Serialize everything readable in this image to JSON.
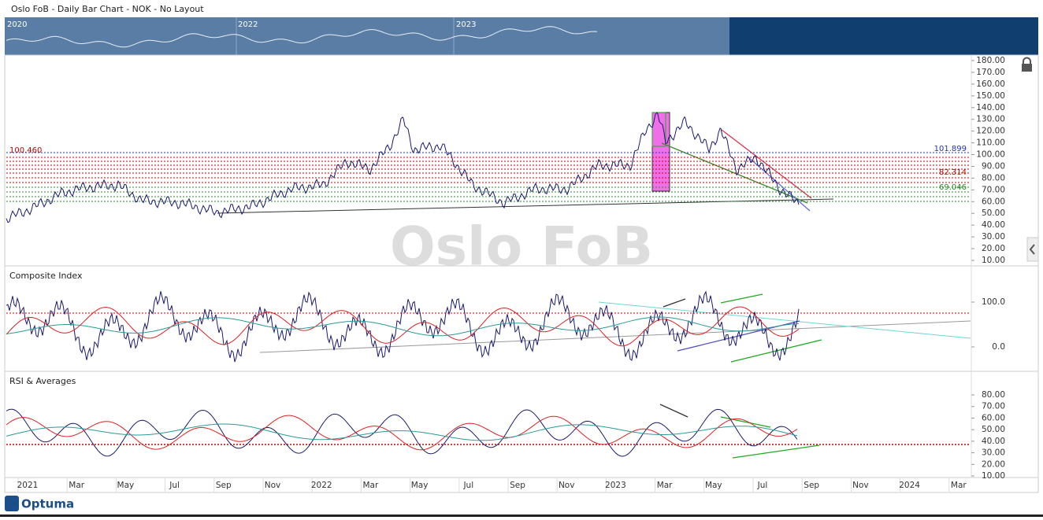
{
  "header": {
    "title": "Oslo FoB - Daily Bar Chart - NOK - No Layout"
  },
  "overview": {
    "years": [
      "2020",
      "2022",
      "2023"
    ]
  },
  "main": {
    "watermark": "Oslo FoB",
    "yticks": [
      {
        "value": 180,
        "label": "180.00"
      },
      {
        "value": 170,
        "label": "170.00"
      },
      {
        "value": 160,
        "label": "160.00"
      },
      {
        "value": 150,
        "label": "150.00"
      },
      {
        "value": 140,
        "label": "140.00"
      },
      {
        "value": 130,
        "label": "130.00"
      },
      {
        "value": 120,
        "label": "120.00"
      },
      {
        "value": 110,
        "label": "110.00"
      },
      {
        "value": 100,
        "label": "100.00"
      },
      {
        "value": 90,
        "label": "90.00"
      },
      {
        "value": 80,
        "label": "80.00"
      },
      {
        "value": 70,
        "label": "70.00"
      },
      {
        "value": 60,
        "label": "60.00"
      },
      {
        "value": 50,
        "label": "50.00"
      },
      {
        "value": 40,
        "label": "40.00"
      },
      {
        "value": 30,
        "label": "30.00"
      },
      {
        "value": 20,
        "label": "20.00"
      },
      {
        "value": 10,
        "label": "10.00"
      }
    ],
    "levels": {
      "left": "100.460",
      "right_top": "101.899",
      "right_mid": "82.314",
      "right_low": "69.046"
    }
  },
  "composite": {
    "title": "Composite Index",
    "yticks": [
      {
        "value": 100,
        "label": "100.0"
      },
      {
        "value": 0,
        "label": "0.0"
      }
    ]
  },
  "rsi": {
    "title": "RSI & Averages",
    "yticks": [
      {
        "value": 80,
        "label": "80.00"
      },
      {
        "value": 70,
        "label": "70.00"
      },
      {
        "value": 60,
        "label": "60.00"
      },
      {
        "value": 50,
        "label": "50.00"
      },
      {
        "value": 40,
        "label": "40.00"
      },
      {
        "value": 30,
        "label": "30.00"
      },
      {
        "value": 20,
        "label": "20.00"
      },
      {
        "value": 10,
        "label": "10.00"
      }
    ]
  },
  "xaxis": {
    "labels": [
      "2021",
      "Mar",
      "May",
      "Jul",
      "Sep",
      "Nov",
      "2022",
      "Mar",
      "May",
      "Jul",
      "Sep",
      "Nov",
      "2023",
      "Mar",
      "May",
      "Jul",
      "Sep",
      "Nov",
      "2024",
      "Mar"
    ]
  },
  "brand": "Optuma"
}
